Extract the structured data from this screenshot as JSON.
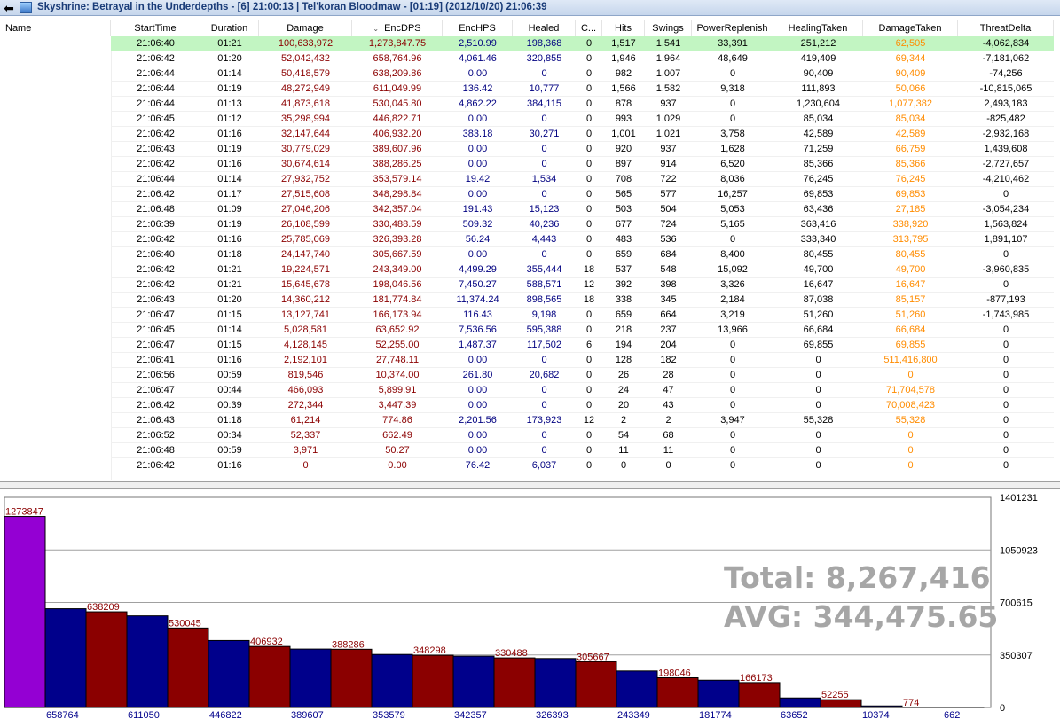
{
  "window": {
    "title": "Skyshrine: Betrayal in the Underdepths - [6] 21:00:13 | Tel'koran Bloodmaw - [01:19] (2012/10/20) 21:06:39",
    "back_glyph": "⬅"
  },
  "table": {
    "headers": {
      "name": "Name",
      "start": "StartTime",
      "duration": "Duration",
      "damage": "Damage",
      "encdps": "EncDPS",
      "enchps": "EncHPS",
      "healed": "Healed",
      "c": "C...",
      "hits": "Hits",
      "swings": "Swings",
      "power": "PowerReplenish",
      "healtaken": "HealingTaken",
      "dmgtaken": "DamageTaken",
      "threat": "ThreatDelta"
    },
    "sort_arrow": "⌄",
    "rows": [
      [
        "21:06:40",
        "01:21",
        "100,633,972",
        "1,273,847.75",
        "2,510.99",
        "198,368",
        "0",
        "1,517",
        "1,541",
        "33,391",
        "251,212",
        "62,505",
        "-4,062,834"
      ],
      [
        "21:06:42",
        "01:20",
        "52,042,432",
        "658,764.96",
        "4,061.46",
        "320,855",
        "0",
        "1,946",
        "1,964",
        "48,649",
        "419,409",
        "69,344",
        "-7,181,062"
      ],
      [
        "21:06:44",
        "01:14",
        "50,418,579",
        "638,209.86",
        "0.00",
        "0",
        "0",
        "982",
        "1,007",
        "0",
        "90,409",
        "90,409",
        "-74,256"
      ],
      [
        "21:06:44",
        "01:19",
        "48,272,949",
        "611,049.99",
        "136.42",
        "10,777",
        "0",
        "1,566",
        "1,582",
        "9,318",
        "111,893",
        "50,066",
        "-10,815,065"
      ],
      [
        "21:06:44",
        "01:13",
        "41,873,618",
        "530,045.80",
        "4,862.22",
        "384,115",
        "0",
        "878",
        "937",
        "0",
        "1,230,604",
        "1,077,382",
        "2,493,183"
      ],
      [
        "21:06:45",
        "01:12",
        "35,298,994",
        "446,822.71",
        "0.00",
        "0",
        "0",
        "993",
        "1,029",
        "0",
        "85,034",
        "85,034",
        "-825,482"
      ],
      [
        "21:06:42",
        "01:16",
        "32,147,644",
        "406,932.20",
        "383.18",
        "30,271",
        "0",
        "1,001",
        "1,021",
        "3,758",
        "42,589",
        "42,589",
        "-2,932,168"
      ],
      [
        "21:06:43",
        "01:19",
        "30,779,029",
        "389,607.96",
        "0.00",
        "0",
        "0",
        "920",
        "937",
        "1,628",
        "71,259",
        "66,759",
        "1,439,608"
      ],
      [
        "21:06:42",
        "01:16",
        "30,674,614",
        "388,286.25",
        "0.00",
        "0",
        "0",
        "897",
        "914",
        "6,520",
        "85,366",
        "85,366",
        "-2,727,657"
      ],
      [
        "21:06:44",
        "01:14",
        "27,932,752",
        "353,579.14",
        "19.42",
        "1,534",
        "0",
        "708",
        "722",
        "8,036",
        "76,245",
        "76,245",
        "-4,210,462"
      ],
      [
        "21:06:42",
        "01:17",
        "27,515,608",
        "348,298.84",
        "0.00",
        "0",
        "0",
        "565",
        "577",
        "16,257",
        "69,853",
        "69,853",
        "0"
      ],
      [
        "21:06:48",
        "01:09",
        "27,046,206",
        "342,357.04",
        "191.43",
        "15,123",
        "0",
        "503",
        "504",
        "5,053",
        "63,436",
        "27,185",
        "-3,054,234"
      ],
      [
        "21:06:39",
        "01:19",
        "26,108,599",
        "330,488.59",
        "509.32",
        "40,236",
        "0",
        "677",
        "724",
        "5,165",
        "363,416",
        "338,920",
        "1,563,824"
      ],
      [
        "21:06:42",
        "01:16",
        "25,785,069",
        "326,393.28",
        "56.24",
        "4,443",
        "0",
        "483",
        "536",
        "0",
        "333,340",
        "313,795",
        "1,891,107"
      ],
      [
        "21:06:40",
        "01:18",
        "24,147,740",
        "305,667.59",
        "0.00",
        "0",
        "0",
        "659",
        "684",
        "8,400",
        "80,455",
        "80,455",
        "0"
      ],
      [
        "21:06:42",
        "01:21",
        "19,224,571",
        "243,349.00",
        "4,499.29",
        "355,444",
        "18",
        "537",
        "548",
        "15,092",
        "49,700",
        "49,700",
        "-3,960,835"
      ],
      [
        "21:06:42",
        "01:21",
        "15,645,678",
        "198,046.56",
        "7,450.27",
        "588,571",
        "12",
        "392",
        "398",
        "3,326",
        "16,647",
        "16,647",
        "0"
      ],
      [
        "21:06:43",
        "01:20",
        "14,360,212",
        "181,774.84",
        "11,374.24",
        "898,565",
        "18",
        "338",
        "345",
        "2,184",
        "87,038",
        "85,157",
        "-877,193"
      ],
      [
        "21:06:47",
        "01:15",
        "13,127,741",
        "166,173.94",
        "116.43",
        "9,198",
        "0",
        "659",
        "664",
        "3,219",
        "51,260",
        "51,260",
        "-1,743,985"
      ],
      [
        "21:06:45",
        "01:14",
        "5,028,581",
        "63,652.92",
        "7,536.56",
        "595,388",
        "0",
        "218",
        "237",
        "13,966",
        "66,684",
        "66,684",
        "0"
      ],
      [
        "21:06:47",
        "01:15",
        "4,128,145",
        "52,255.00",
        "1,487.37",
        "117,502",
        "6",
        "194",
        "204",
        "0",
        "69,855",
        "69,855",
        "0"
      ],
      [
        "21:06:41",
        "01:16",
        "2,192,101",
        "27,748.11",
        "0.00",
        "0",
        "0",
        "128",
        "182",
        "0",
        "0",
        "511,416,800",
        "0"
      ],
      [
        "21:06:56",
        "00:59",
        "819,546",
        "10,374.00",
        "261.80",
        "20,682",
        "0",
        "26",
        "28",
        "0",
        "0",
        "0",
        "0"
      ],
      [
        "21:06:47",
        "00:44",
        "466,093",
        "5,899.91",
        "0.00",
        "0",
        "0",
        "24",
        "47",
        "0",
        "0",
        "71,704,578",
        "0"
      ],
      [
        "21:06:42",
        "00:39",
        "272,344",
        "3,447.39",
        "0.00",
        "0",
        "0",
        "20",
        "43",
        "0",
        "0",
        "70,008,423",
        "0"
      ],
      [
        "21:06:43",
        "01:18",
        "61,214",
        "774.86",
        "2,201.56",
        "173,923",
        "12",
        "2",
        "2",
        "3,947",
        "55,328",
        "55,328",
        "0"
      ],
      [
        "21:06:52",
        "00:34",
        "52,337",
        "662.49",
        "0.00",
        "0",
        "0",
        "54",
        "68",
        "0",
        "0",
        "0",
        "0"
      ],
      [
        "21:06:48",
        "00:59",
        "3,971",
        "50.27",
        "0.00",
        "0",
        "0",
        "11",
        "11",
        "0",
        "0",
        "0",
        "0"
      ],
      [
        "21:06:42",
        "01:16",
        "0",
        "0.00",
        "76.42",
        "6,037",
        "0",
        "0",
        "0",
        "0",
        "0",
        "0",
        "0"
      ]
    ],
    "selected_row": 0
  },
  "chart_data": {
    "type": "bar",
    "ylim": [
      0,
      1401231
    ],
    "y_ticks": [
      "1401231",
      "1050923",
      "700615",
      "350307",
      "0"
    ],
    "values": [
      1273847,
      658764,
      638209,
      611050,
      530045,
      446822,
      406932,
      389607,
      388286,
      353579,
      348298,
      342357,
      330488,
      326393,
      305667,
      243349,
      198046,
      181774,
      166173,
      63652,
      52255,
      10374,
      774,
      662
    ],
    "bar_labels": [
      "1273847",
      "658764",
      "638209",
      "611050",
      "530045",
      "446822",
      "406932",
      "389607",
      "388286",
      "353579",
      "348298",
      "342357",
      "330488",
      "326393",
      "305667",
      "243349",
      "198046",
      "181774",
      "166173",
      "63652",
      "52255",
      "10374",
      "774",
      "662"
    ],
    "colors": {
      "first": "#9400d3",
      "odd": "#00008b",
      "even": "#8b0000"
    },
    "total_text": "Total: 8,267,416",
    "avg_text": "AVG: 344,475.65",
    "grid": true
  }
}
